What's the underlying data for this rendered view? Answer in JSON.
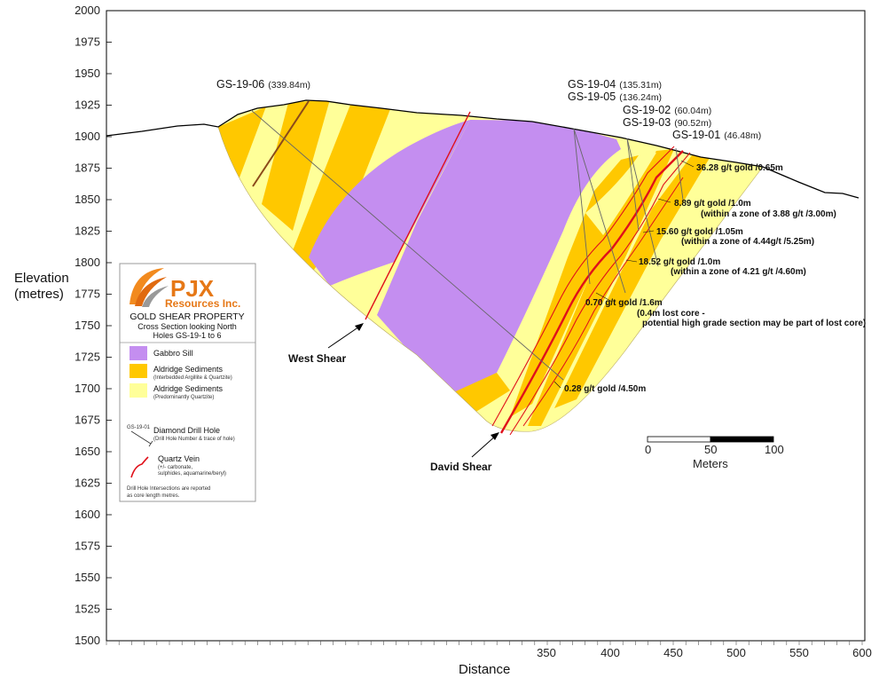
{
  "axes": {
    "ylabel_line1": "Elevation",
    "ylabel_line2": "(metres)",
    "xlabel": "Distance",
    "y_ticks": [
      "2000",
      "1975",
      "1950",
      "1925",
      "1900",
      "1875",
      "1850",
      "1825",
      "1800",
      "1775",
      "1750",
      "1725",
      "1700",
      "1675",
      "1650",
      "1625",
      "1600",
      "1575",
      "1550",
      "1525",
      "1500"
    ],
    "x_ticks": [
      "350",
      "400",
      "450",
      "500",
      "550",
      "600"
    ]
  },
  "drill_holes": [
    {
      "name": "GS-19-06",
      "depth": "(339.84m)"
    },
    {
      "name": "GS-19-04",
      "depth": "(135.31m)"
    },
    {
      "name": "GS-19-05",
      "depth": "(136.24m)"
    },
    {
      "name": "GS-19-02",
      "depth": "(60.04m)"
    },
    {
      "name": "GS-19-03",
      "depth": "(90.52m)"
    },
    {
      "name": "GS-19-01",
      "depth": "(46.48m)"
    }
  ],
  "annotations": [
    "36.28 g/t gold /0.65m",
    "8.89 g/t gold /1.0m",
    "(within a zone of 3.88 g/t /3.00m)",
    "15.60 g/t gold /1.05m",
    "(within a zone of 4.44g/t /5.25m)",
    "18.52 g/t gold /1.0m",
    "(within a zone of 4.21 g/t /4.60m)",
    "0.70 g/t gold /1.6m",
    "(0.4m lost core -",
    "potential high grade section may be part of lost core)",
    "0.28 g/t gold /4.50m"
  ],
  "shears": {
    "west": "West Shear",
    "david": "David Shear"
  },
  "scale_bar": {
    "labels": [
      "0",
      "50",
      "100"
    ],
    "unit": "Meters"
  },
  "legend": {
    "logo_line1": "PJX",
    "logo_line2": "Resources Inc.",
    "property": "GOLD SHEAR PROPERTY",
    "subtitle1": "Cross Section looking North",
    "subtitle2": "Holes GS-19-1 to 6",
    "items": [
      {
        "label": "Gabbro Sill",
        "sub": "",
        "color": "#c48ef0"
      },
      {
        "label": "Aldridge Sediments",
        "sub": "(Interbedded Argillite & Quartzite)",
        "color": "#ffc800"
      },
      {
        "label": "Aldridge Sediments",
        "sub": "(Predominantly Quartzite)",
        "color": "#ffff99"
      }
    ],
    "drill_symbol_label": "GS-19-01",
    "drill_label": "Diamond Drill Hole",
    "drill_sub": "(Drill Hole Number & trace of hole)",
    "vein_label": "Quartz Vein",
    "vein_sub1": "(+/- carbonate,",
    "vein_sub2": "sulphides, aquamarine/beryl)",
    "note1": "Drill Hole Intersections are reported",
    "note2": "as core length metres."
  },
  "colors": {
    "gabbro": "#c48ef0",
    "argillite": "#ffc800",
    "quartzite": "#ffff99",
    "vein": "#e0101a",
    "dyke": "#8b4a1a"
  }
}
